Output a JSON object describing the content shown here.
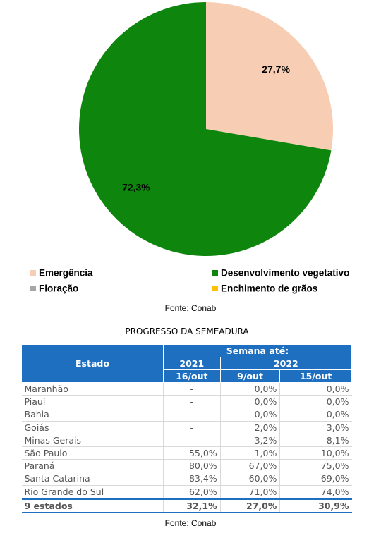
{
  "chart_data": {
    "type": "pie",
    "categories": [
      "Emergência",
      "Desenvolvimento vegetativo",
      "Floração",
      "Enchimento de grãos"
    ],
    "values": [
      27.7,
      72.3,
      0,
      0
    ],
    "value_labels": [
      "27,7%",
      "72,3%",
      null,
      null
    ],
    "colors": [
      "#f7ceb3",
      "#0e860e",
      "#a6a6a6",
      "#ffc000"
    ],
    "source": "Fonte: Conab"
  },
  "table": {
    "title": "PROGRESSO DA SEMEADURA",
    "header": {
      "estado": "Estado",
      "semana": "Semana até:",
      "years": [
        "2021",
        "2022"
      ],
      "dates": [
        "16/out",
        "9/out",
        "15/out"
      ]
    },
    "rows": [
      [
        "Maranhão",
        "-",
        "0,0%",
        "0,0%"
      ],
      [
        "Piauí",
        "-",
        "0,0%",
        "0,0%"
      ],
      [
        "Bahia",
        "-",
        "0,0%",
        "0,0%"
      ],
      [
        "Goiás",
        "-",
        "2,0%",
        "3,0%"
      ],
      [
        "Minas Gerais",
        "-",
        "3,2%",
        "8,1%"
      ],
      [
        "São Paulo",
        "55,0%",
        "1,0%",
        "10,0%"
      ],
      [
        "Paraná",
        "80,0%",
        "67,0%",
        "75,0%"
      ],
      [
        "Santa Catarina",
        "83,4%",
        "60,0%",
        "69,0%"
      ],
      [
        "Rio Grande do Sul",
        "62,0%",
        "71,0%",
        "74,0%"
      ]
    ],
    "total": [
      "9 estados",
      "32,1%",
      "27,0%",
      "30,9%"
    ],
    "source": "Fonte: Conab"
  }
}
